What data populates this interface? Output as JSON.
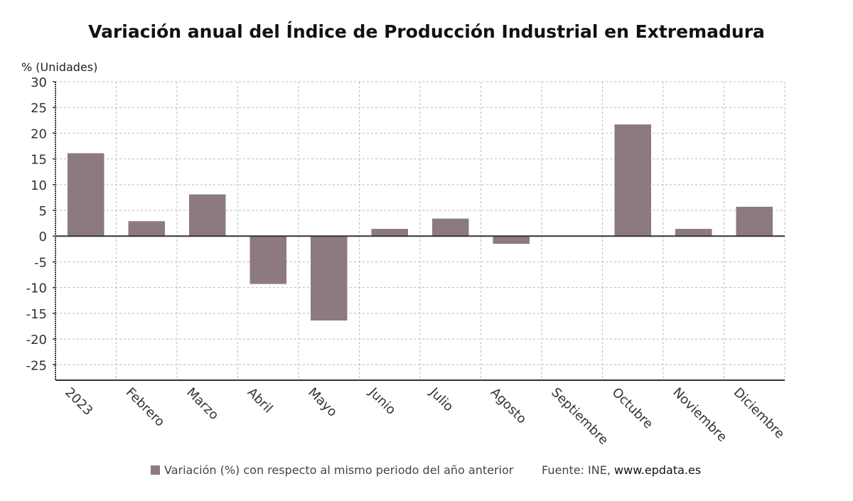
{
  "chart_data": {
    "type": "bar",
    "title": "Variación anual del Índice de Producción Industrial en Extremadura",
    "ylabel": "% (Unidades)",
    "xlabel": "",
    "categories": [
      "2023",
      "Febrero",
      "Marzo",
      "Abril",
      "Mayo",
      "Junio",
      "Julio",
      "Agosto",
      "Septiembre",
      "Octubre",
      "Noviembre",
      "Diciembre"
    ],
    "series": [
      {
        "name": "Variación (%) con respecto al mismo periodo del año anterior",
        "values": [
          16.1,
          2.9,
          8.1,
          -9.3,
          -16.4,
          1.4,
          3.4,
          -1.5,
          0.0,
          21.7,
          1.4,
          5.7
        ],
        "color": "#8c7a80"
      }
    ],
    "ylim": [
      -28,
      30
    ],
    "yticks": [
      30,
      25,
      20,
      15,
      10,
      5,
      0,
      -5,
      -10,
      -15,
      -20,
      -25
    ],
    "grid": true,
    "legend_position": "bottom"
  },
  "source": {
    "prefix": "Fuente: INE, ",
    "site": "www.epdata.es"
  }
}
